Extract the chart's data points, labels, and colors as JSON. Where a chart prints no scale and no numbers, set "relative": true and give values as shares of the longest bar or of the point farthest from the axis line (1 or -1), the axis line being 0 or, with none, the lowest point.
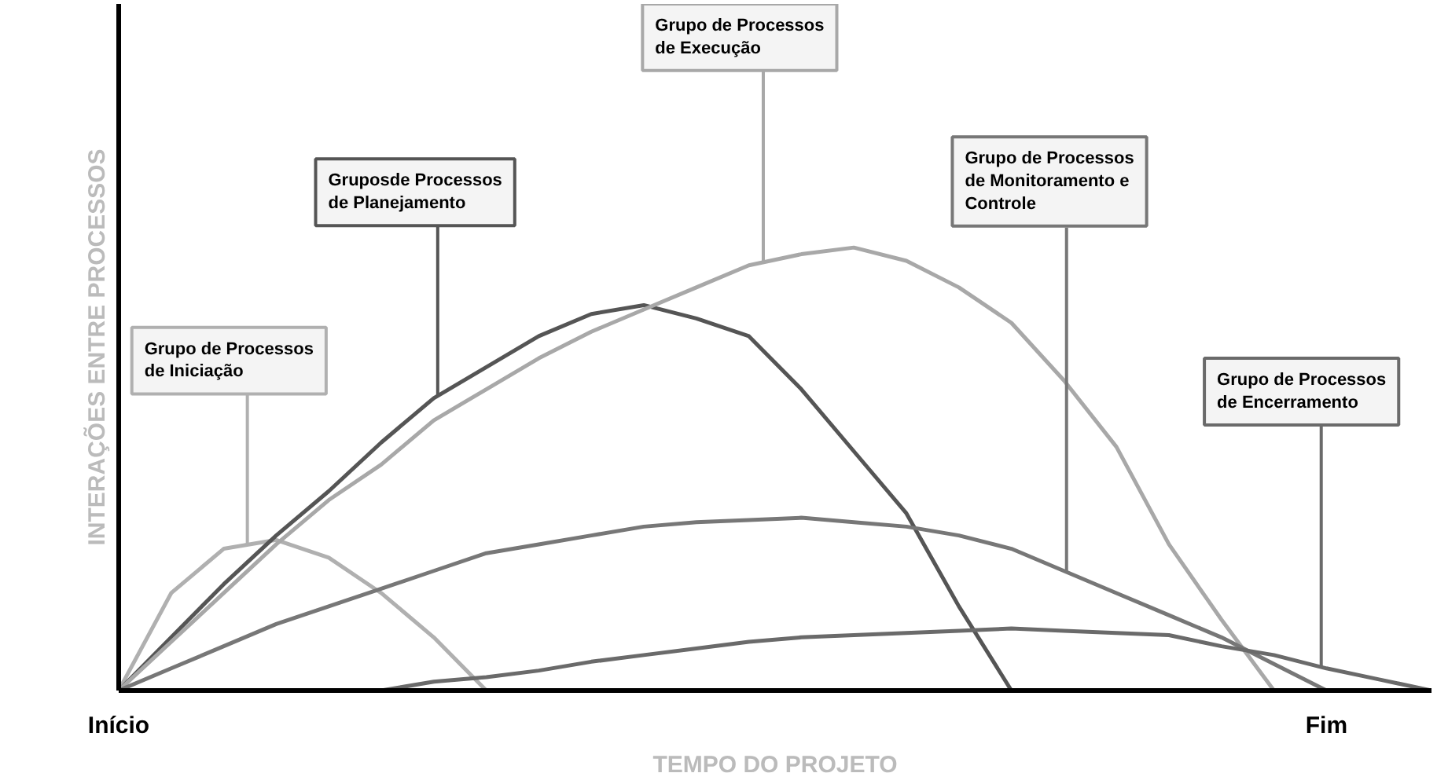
{
  "chart_data": {
    "type": "line",
    "relative": true,
    "xlabel": "TEMPO DO PROJETO",
    "ylabel": "INTERAÇÕES ENTRE PROCESSOS",
    "ylim": [
      0,
      1.55
    ],
    "legend": false,
    "categories": [
      "Início",
      null,
      null,
      null,
      null,
      null,
      null,
      null,
      null,
      null,
      null,
      null,
      null,
      null,
      null,
      null,
      null,
      null,
      null,
      null,
      null,
      null,
      null,
      "Fim",
      null,
      null
    ],
    "series": [
      {
        "name": "Grupo de Processos de Iniciação",
        "color": "#b0b0b0",
        "values": [
          0,
          0.22,
          0.32,
          0.34,
          0.3,
          0.22,
          0.12,
          0,
          null,
          null,
          null,
          null,
          null,
          null,
          null,
          null,
          null,
          null,
          null,
          null,
          null,
          null,
          null,
          null,
          null,
          null
        ]
      },
      {
        "name": "Gruposde Processos de Planejamento",
        "color": "#555555",
        "values": [
          0,
          0.12,
          0.24,
          0.35,
          0.45,
          0.56,
          0.66,
          0.73,
          0.8,
          0.85,
          0.87,
          0.84,
          0.8,
          0.68,
          0.54,
          0.4,
          0.19,
          0,
          null,
          null,
          null,
          null,
          null,
          null,
          null,
          null
        ]
      },
      {
        "name": "Grupo de Processos de Execução",
        "color": "#a8a8a8",
        "values": [
          0,
          0.11,
          0.22,
          0.33,
          0.43,
          0.51,
          0.61,
          0.68,
          0.75,
          0.81,
          0.86,
          0.91,
          0.96,
          0.985,
          1.0,
          0.97,
          0.91,
          0.83,
          0.7,
          0.55,
          0.33,
          0.16,
          0,
          null,
          null,
          null
        ]
      },
      {
        "name": "Grupo de Processos de Monitoramento e Controle",
        "color": "#777777",
        "values": [
          0,
          0.05,
          0.1,
          0.15,
          0.19,
          0.23,
          0.27,
          0.31,
          0.33,
          0.35,
          0.37,
          0.38,
          0.385,
          0.39,
          0.38,
          0.37,
          0.35,
          0.32,
          0.27,
          0.22,
          0.17,
          0.12,
          0.06,
          0,
          null,
          null
        ]
      },
      {
        "name": "Grupo de Processos de Encerramento",
        "color": "#6a6a6a",
        "values": [
          null,
          null,
          null,
          null,
          null,
          0,
          0.02,
          0.03,
          0.045,
          0.065,
          0.08,
          0.095,
          0.11,
          0.12,
          0.125,
          0.13,
          0.135,
          0.14,
          0.135,
          0.13,
          0.125,
          0.1,
          0.08,
          0.05,
          0.025,
          0
        ]
      }
    ]
  }
}
